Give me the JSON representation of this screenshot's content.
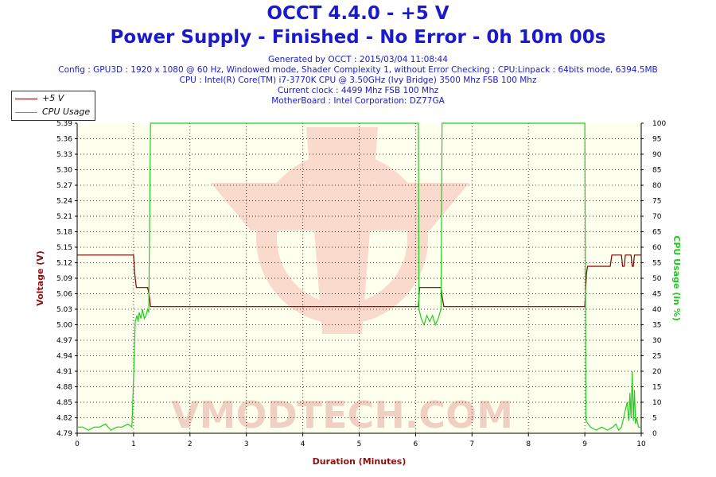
{
  "header": {
    "title": "OCCT 4.4.0 - +5 V",
    "subtitle": "Power Supply - Finished - No Error - 0h 10m 00s",
    "info_lines": [
      "Generated by OCCT : 2015/03/04 11:08:44",
      "Config : GPU3D : 1920 x 1080 @ 60 Hz, Windowed mode, Shader Complexity 1, without Error Checking ; CPU:Linpack : 64bits mode, 6394.5MB",
      "CPU : Intel(R) Core(TM) i7-3770K CPU @ 3.50GHz (Ivy Bridge) 3500 Mhz FSB 100 Mhz",
      "Current clock : 4499 Mhz FSB 100 Mhz",
      "MotherBoard : Intel Corporation: DZ77GA"
    ]
  },
  "legend": {
    "items": [
      {
        "label": "+5 V",
        "color": "#7a0000"
      },
      {
        "label": "CPU Usage",
        "color": "#22cc22"
      }
    ]
  },
  "watermark": "VMODTECH.COM",
  "chart_data": {
    "type": "line",
    "title": "OCCT 4.4.0 - +5 V",
    "xlabel": "Duration (Minutes)",
    "ylabel_left": "Voltage (V)",
    "ylabel_right": "CPU Usage (in %)",
    "xlim": [
      0,
      10
    ],
    "ylim_left": [
      4.79,
      5.39
    ],
    "ylim_right": [
      0,
      100
    ],
    "x_ticks": [
      "0",
      "1",
      "2",
      "3",
      "4",
      "5",
      "6",
      "7",
      "8",
      "9",
      "10"
    ],
    "y_ticks_left": [
      "4.79",
      "4.82",
      "4.85",
      "4.88",
      "4.91",
      "4.94",
      "4.97",
      "5.00",
      "5.03",
      "5.06",
      "5.09",
      "5.12",
      "5.15",
      "5.18",
      "5.21",
      "5.24",
      "5.27",
      "5.30",
      "5.33",
      "5.36",
      "5.39"
    ],
    "y_ticks_right": [
      "0",
      "5",
      "10",
      "15",
      "20",
      "25",
      "30",
      "35",
      "40",
      "45",
      "50",
      "55",
      "60",
      "65",
      "70",
      "75",
      "80",
      "85",
      "90",
      "95",
      "100"
    ],
    "grid": true,
    "legend_position": "top-left",
    "background_color": "#ffffee",
    "series": [
      {
        "name": "+5 V",
        "axis": "left",
        "color": "#7a0000",
        "x": [
          0,
          1.0,
          1.02,
          1.05,
          1.25,
          1.28,
          1.3,
          6.05,
          6.07,
          6.45,
          6.47,
          6.5,
          9.0,
          9.03,
          9.05,
          9.45,
          9.48,
          9.5,
          9.65,
          9.67,
          9.7,
          9.72,
          9.75,
          9.82,
          9.84,
          9.86,
          9.88,
          9.9,
          10.0
        ],
        "values": [
          5.135,
          5.135,
          5.1,
          5.072,
          5.072,
          5.055,
          5.035,
          5.035,
          5.072,
          5.072,
          5.055,
          5.035,
          5.035,
          5.1,
          5.113,
          5.113,
          5.135,
          5.135,
          5.135,
          5.113,
          5.113,
          5.135,
          5.135,
          5.135,
          5.113,
          5.113,
          5.135,
          5.135,
          5.135
        ]
      },
      {
        "name": "CPU Usage",
        "axis": "right",
        "color": "#22cc22",
        "x": [
          0,
          0.1,
          0.2,
          0.3,
          0.4,
          0.5,
          0.6,
          0.7,
          0.8,
          0.9,
          0.97,
          1.0,
          1.03,
          1.06,
          1.08,
          1.1,
          1.13,
          1.16,
          1.19,
          1.22,
          1.25,
          1.27,
          1.3,
          6.05,
          6.06,
          6.1,
          6.15,
          6.2,
          6.25,
          6.3,
          6.35,
          6.4,
          6.45,
          6.47,
          6.5,
          9.0,
          9.02,
          9.1,
          9.2,
          9.3,
          9.4,
          9.5,
          9.55,
          9.6,
          9.65,
          9.7,
          9.75,
          9.78,
          9.8,
          9.82,
          9.84,
          9.86,
          9.88,
          9.9,
          9.92,
          9.95,
          10.0
        ],
        "values": [
          2,
          2,
          1,
          2,
          2,
          3,
          1,
          2,
          2,
          3,
          2,
          18,
          36,
          38,
          36,
          39,
          37,
          40,
          37,
          38,
          40,
          39,
          100,
          100,
          40,
          37,
          35,
          38,
          36,
          38,
          35,
          37,
          40,
          100,
          100,
          100,
          4,
          2,
          1,
          2,
          1,
          2,
          3,
          1,
          2,
          6,
          10,
          4,
          13,
          5,
          20,
          4,
          14,
          3,
          5,
          2,
          2
        ]
      }
    ]
  }
}
